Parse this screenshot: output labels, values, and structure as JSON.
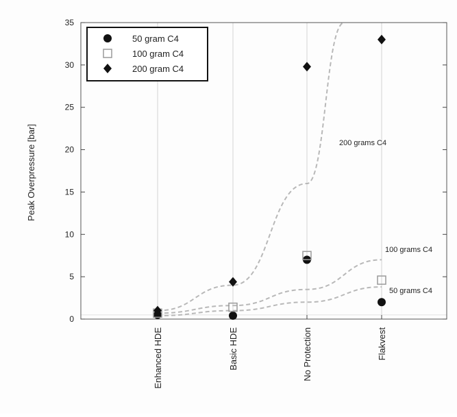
{
  "chart_data": {
    "type": "scatter",
    "ylabel": "Peak Overpressure [bar]",
    "xlabel": "",
    "categories": [
      "Enhanced HDE",
      "Basic HDE",
      "No Protection",
      "Flakvest"
    ],
    "ylim": [
      0,
      35
    ],
    "yticks": [
      0,
      5,
      10,
      15,
      20,
      25,
      30,
      35
    ],
    "grid": "vertical",
    "legend_position": "top-left",
    "series": [
      {
        "name": "50 gram C4",
        "marker": "circle",
        "color": "#111111",
        "values": [
          0.5,
          0.4,
          7.0,
          2.0
        ]
      },
      {
        "name": "100 gram C4",
        "marker": "open-square",
        "color": "#9a9a9a",
        "values": [
          0.7,
          1.4,
          7.5,
          4.6
        ]
      },
      {
        "name": "200 gram C4",
        "marker": "diamond",
        "color": "#111111",
        "values": [
          1.0,
          4.4,
          29.8,
          33.0
        ]
      }
    ],
    "trend_lines": [
      {
        "label": "200 grams C4",
        "style": "dashed",
        "color": "#b8b8b8",
        "points": [
          [
            0,
            1.0
          ],
          [
            1,
            4.0
          ],
          [
            2,
            16.0
          ],
          [
            2.5,
            35.0
          ]
        ]
      },
      {
        "label": "100 grams C4",
        "style": "dashed",
        "color": "#b8b8b8",
        "points": [
          [
            0,
            0.7
          ],
          [
            1,
            1.6
          ],
          [
            2,
            3.5
          ],
          [
            3,
            7.0
          ]
        ]
      },
      {
        "label": "50 grams C4",
        "style": "dashed",
        "color": "#b8b8b8",
        "points": [
          [
            0,
            0.4
          ],
          [
            1,
            1.0
          ],
          [
            2,
            2.0
          ],
          [
            3,
            3.8
          ]
        ]
      }
    ]
  }
}
